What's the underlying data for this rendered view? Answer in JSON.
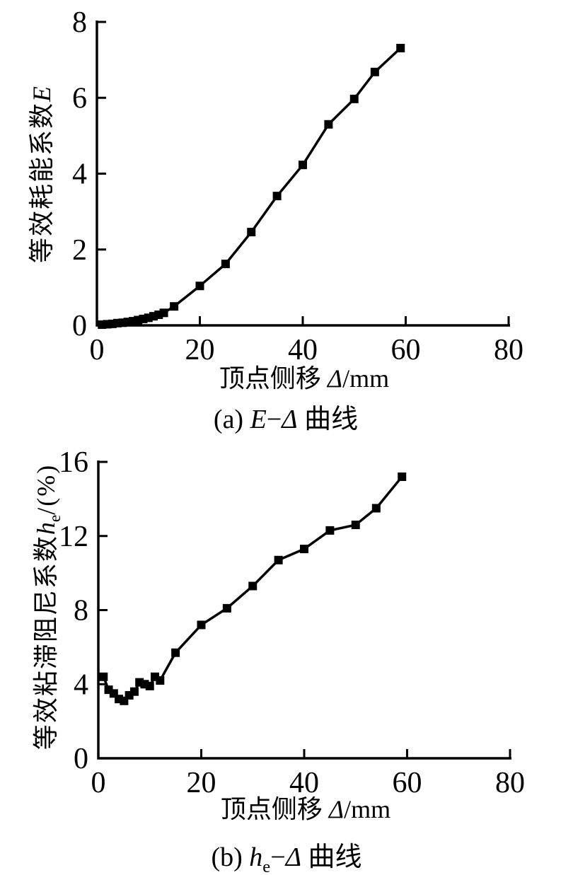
{
  "page": {
    "background": "#ffffff",
    "ink_color": "#000000"
  },
  "chart_data": [
    {
      "type": "line",
      "panel": "a",
      "title": "(a) E−Δ 曲线",
      "xlabel": "顶点侧移 Δ/mm",
      "ylabel": "等效耗能系数E",
      "caption_parts": {
        "prefix": "(a) ",
        "var1": "E",
        "var1_sub": "",
        "dash": "−",
        "var2": "Δ",
        "suffix": " 曲线"
      },
      "xlabel_parts": {
        "cjk": "顶点侧移 ",
        "var": "Δ",
        "unit": "/mm"
      },
      "ylabel_parts": {
        "cjk": "等效耗能系数",
        "var": "E",
        "var_sub": "",
        "unit": ""
      },
      "xlim": [
        0,
        80
      ],
      "ylim": [
        0,
        8
      ],
      "xticks": [
        0,
        20,
        40,
        60,
        80
      ],
      "yticks": [
        0,
        2,
        4,
        6,
        8
      ],
      "grid": false,
      "legend": null,
      "marker": "filled-square",
      "line_color": "#000000",
      "x": [
        1,
        2,
        3,
        4,
        5,
        6,
        7,
        8,
        9,
        10,
        11,
        12,
        13,
        15,
        20,
        25,
        30,
        35,
        40,
        45,
        50,
        54,
        59
      ],
      "y": [
        0.02,
        0.03,
        0.04,
        0.06,
        0.07,
        0.09,
        0.11,
        0.14,
        0.17,
        0.2,
        0.24,
        0.28,
        0.33,
        0.5,
        1.04,
        1.62,
        2.46,
        3.41,
        4.23,
        5.3,
        5.97,
        6.68,
        7.31
      ]
    },
    {
      "type": "line",
      "panel": "b",
      "title": "(b) hₑ−Δ 曲线",
      "xlabel": "顶点侧移 Δ/mm",
      "ylabel": "等效粘滞阻尼系数hₑ/(%)",
      "caption_parts": {
        "prefix": "(b) ",
        "var1": "h",
        "var1_sub": "e",
        "dash": "−",
        "var2": "Δ",
        "suffix": " 曲线"
      },
      "xlabel_parts": {
        "cjk": "顶点侧移 ",
        "var": "Δ",
        "unit": "/mm"
      },
      "ylabel_parts": {
        "cjk": "等效粘滞阻尼系数",
        "var": "h",
        "var_sub": "e",
        "unit": "/(%)"
      },
      "xlim": [
        0,
        80
      ],
      "ylim": [
        0,
        16
      ],
      "xticks": [
        0,
        20,
        40,
        60,
        80
      ],
      "yticks": [
        0,
        4,
        8,
        12,
        16
      ],
      "grid": false,
      "legend": null,
      "marker": "filled-square",
      "line_color": "#000000",
      "x": [
        1,
        2,
        3,
        4,
        5,
        6,
        7,
        8,
        9,
        10,
        11,
        12,
        15,
        20,
        25,
        30,
        35,
        40,
        45,
        50,
        54,
        59
      ],
      "y": [
        4.4,
        3.7,
        3.5,
        3.2,
        3.1,
        3.4,
        3.6,
        4.1,
        4.0,
        3.9,
        4.4,
        4.2,
        5.7,
        7.2,
        8.1,
        9.3,
        10.7,
        11.3,
        12.3,
        12.6,
        13.5,
        15.2
      ]
    }
  ]
}
